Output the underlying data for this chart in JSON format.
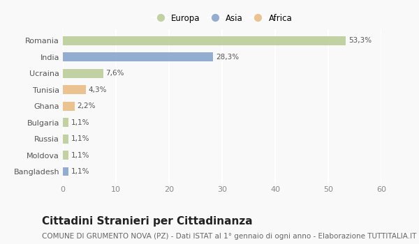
{
  "categories": [
    "Romania",
    "India",
    "Ucraina",
    "Tunisia",
    "Ghana",
    "Bulgaria",
    "Russia",
    "Moldova",
    "Bangladesh"
  ],
  "values": [
    53.3,
    28.3,
    7.6,
    4.3,
    2.2,
    1.1,
    1.1,
    1.1,
    1.1
  ],
  "labels": [
    "53,3%",
    "28,3%",
    "7,6%",
    "4,3%",
    "2,2%",
    "1,1%",
    "1,1%",
    "1,1%",
    "1,1%"
  ],
  "colors": [
    "#b5c98e",
    "#7d9dc7",
    "#b5c98e",
    "#e8b87a",
    "#e8b87a",
    "#b5c98e",
    "#b5c98e",
    "#b5c98e",
    "#7d9dc7"
  ],
  "legend_labels": [
    "Europa",
    "Asia",
    "Africa"
  ],
  "legend_colors": [
    "#b5c98e",
    "#7d9dc7",
    "#e8b87a"
  ],
  "xlim": [
    0,
    60
  ],
  "xticks": [
    0,
    10,
    20,
    30,
    40,
    50,
    60
  ],
  "title": "Cittadini Stranieri per Cittadinanza",
  "subtitle": "COMUNE DI GRUMENTO NOVA (PZ) - Dati ISTAT al 1° gennaio di ogni anno - Elaborazione TUTTITALIA.IT",
  "background_color": "#f9f9f9",
  "bar_height": 0.55,
  "title_fontsize": 11,
  "subtitle_fontsize": 7.5
}
